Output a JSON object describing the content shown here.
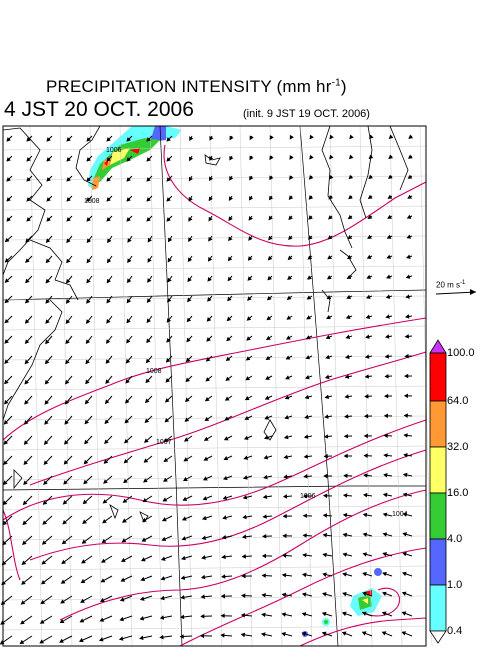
{
  "header": {
    "title": "PRECIPITATION INTENSITY (mm hr",
    "title_exp": "-1",
    "title_close": ")",
    "valid_time": "4 JST 20 OCT. 2006",
    "init_time": "(init. 9 JST 19 OCT. 2006)"
  },
  "reference_vector": {
    "label": "20 m s",
    "label_exp": "-1"
  },
  "legend": {
    "levels": [
      "100.0",
      "64.0",
      "32.0",
      "16.0",
      "4.0",
      "1.0",
      "0.4"
    ],
    "colors": [
      "#ff0000",
      "#ff9933",
      "#ffff66",
      "#33cc33",
      "#5566ff",
      "#66ffff"
    ],
    "over_color": "#cc33ff"
  },
  "map": {
    "pressure_labels": [
      "1006",
      "1008",
      "1008",
      "1007",
      "1006",
      "1004"
    ],
    "isobar_color": "#cc0066",
    "land_outline_color": "#000000"
  }
}
